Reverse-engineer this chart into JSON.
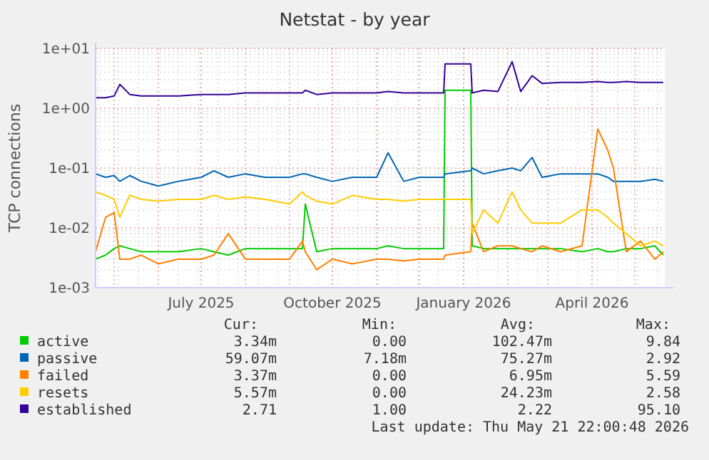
{
  "chart_data": {
    "type": "line",
    "title": "Netstat - by year",
    "ylabel": "TCP connections",
    "log": "y",
    "grid": true,
    "legend": "bottom",
    "marker": "none",
    "line_style": "solid",
    "xlim": [
      "2025-04-18",
      "2026-05-22"
    ],
    "xticks": [
      {
        "value": "2025-07-01",
        "label": "July 2025"
      },
      {
        "value": "2025-10-01",
        "label": "October 2025"
      },
      {
        "value": "2026-01-01",
        "label": "January 2026"
      },
      {
        "value": "2026-04-01",
        "label": "April 2026"
      }
    ],
    "ylim": [
      0.001,
      10
    ],
    "yticks": [
      {
        "value": 0.001,
        "label": "1e-03"
      },
      {
        "value": 0.01,
        "label": "1e-02"
      },
      {
        "value": 0.1,
        "label": "1e-01"
      },
      {
        "value": 1,
        "label": "1e+00"
      },
      {
        "value": 10,
        "label": "1e+01"
      }
    ],
    "x": [
      "2025-04-18",
      "2025-04-25",
      "2025-05-01",
      "2025-05-05",
      "2025-05-12",
      "2025-05-20",
      "2025-06-01",
      "2025-06-15",
      "2025-07-01",
      "2025-07-10",
      "2025-07-20",
      "2025-08-01",
      "2025-08-15",
      "2025-09-01",
      "2025-09-10",
      "2025-09-12",
      "2025-09-20",
      "2025-10-01",
      "2025-10-15",
      "2025-11-01",
      "2025-11-09",
      "2025-11-20",
      "2025-12-01",
      "2025-12-18",
      "2025-12-19",
      "2026-01-06",
      "2026-01-07",
      "2026-01-15",
      "2026-01-25",
      "2026-02-04",
      "2026-02-10",
      "2026-02-18",
      "2026-02-25",
      "2026-03-10",
      "2026-03-25",
      "2026-04-05",
      "2026-04-12",
      "2026-04-16",
      "2026-04-25",
      "2026-05-05",
      "2026-05-15",
      "2026-05-21"
    ],
    "series": [
      {
        "name": "active",
        "color": "#00cc00",
        "values": [
          0.003,
          0.0035,
          0.0045,
          0.005,
          0.0045,
          0.004,
          0.004,
          0.004,
          0.0045,
          0.004,
          0.0035,
          0.0045,
          0.0045,
          0.0045,
          0.0045,
          0.025,
          0.004,
          0.0045,
          0.0045,
          0.0045,
          0.005,
          0.0045,
          0.0045,
          0.0045,
          2.0,
          2.0,
          0.005,
          0.0045,
          0.0045,
          0.0045,
          0.0045,
          0.0045,
          0.0045,
          0.0045,
          0.004,
          0.0045,
          0.004,
          0.004,
          0.0045,
          0.0045,
          0.005,
          0.0035
        ]
      },
      {
        "name": "passive",
        "color": "#0066b3",
        "values": [
          0.08,
          0.07,
          0.075,
          0.06,
          0.075,
          0.06,
          0.05,
          0.06,
          0.07,
          0.09,
          0.07,
          0.08,
          0.07,
          0.07,
          0.08,
          0.08,
          0.07,
          0.06,
          0.07,
          0.07,
          0.18,
          0.06,
          0.07,
          0.07,
          0.08,
          0.09,
          0.1,
          0.08,
          0.09,
          0.1,
          0.09,
          0.15,
          0.07,
          0.08,
          0.08,
          0.08,
          0.07,
          0.06,
          0.06,
          0.06,
          0.065,
          0.06
        ]
      },
      {
        "name": "failed",
        "color": "#ff8000",
        "values": [
          0.004,
          0.015,
          0.018,
          0.003,
          0.003,
          0.0035,
          0.0025,
          0.003,
          0.003,
          0.0035,
          0.008,
          0.003,
          0.003,
          0.003,
          0.006,
          0.004,
          0.002,
          0.003,
          0.0025,
          0.003,
          0.003,
          0.0028,
          0.003,
          0.003,
          0.0035,
          0.004,
          0.012,
          0.004,
          0.005,
          0.005,
          0.0045,
          0.004,
          0.005,
          0.004,
          0.005,
          0.45,
          0.2,
          0.1,
          0.004,
          0.006,
          0.003,
          0.004
        ]
      },
      {
        "name": "resets",
        "color": "#ffcc00",
        "values": [
          0.04,
          0.035,
          0.03,
          0.015,
          0.035,
          0.03,
          0.028,
          0.03,
          0.03,
          0.035,
          0.03,
          0.033,
          0.03,
          0.025,
          0.04,
          0.035,
          0.028,
          0.025,
          0.035,
          0.03,
          0.03,
          0.028,
          0.03,
          0.03,
          0.03,
          0.03,
          0.008,
          0.02,
          0.012,
          0.04,
          0.02,
          0.012,
          0.012,
          0.012,
          0.02,
          0.02,
          0.015,
          0.012,
          0.008,
          0.005,
          0.006,
          0.005
        ]
      },
      {
        "name": "established",
        "color": "#330099",
        "values": [
          1.5,
          1.5,
          1.6,
          2.5,
          1.7,
          1.6,
          1.6,
          1.6,
          1.7,
          1.7,
          1.7,
          1.8,
          1.8,
          1.8,
          1.8,
          2.0,
          1.7,
          1.8,
          1.8,
          1.8,
          1.9,
          1.8,
          1.8,
          1.8,
          5.5,
          5.5,
          1.8,
          2.0,
          1.9,
          6.0,
          1.9,
          3.5,
          2.6,
          2.7,
          2.7,
          2.8,
          2.7,
          2.7,
          2.8,
          2.7,
          2.7,
          2.71
        ]
      }
    ],
    "annotations": [
      "Cur:",
      "Min:",
      "Avg:",
      "Max:",
      "3.34m",
      "0.00",
      "102.47m",
      "9.84",
      "59.07m",
      "7.18m",
      "75.27m",
      "2.92",
      "3.37m",
      "0.00",
      "6.95m",
      "5.59",
      "5.57m",
      "0.00",
      "24.23m",
      "2.58",
      "2.71",
      "1.00",
      "2.22",
      "95.10",
      "Last update: Thu May 21 22:00:48 2026"
    ]
  }
}
